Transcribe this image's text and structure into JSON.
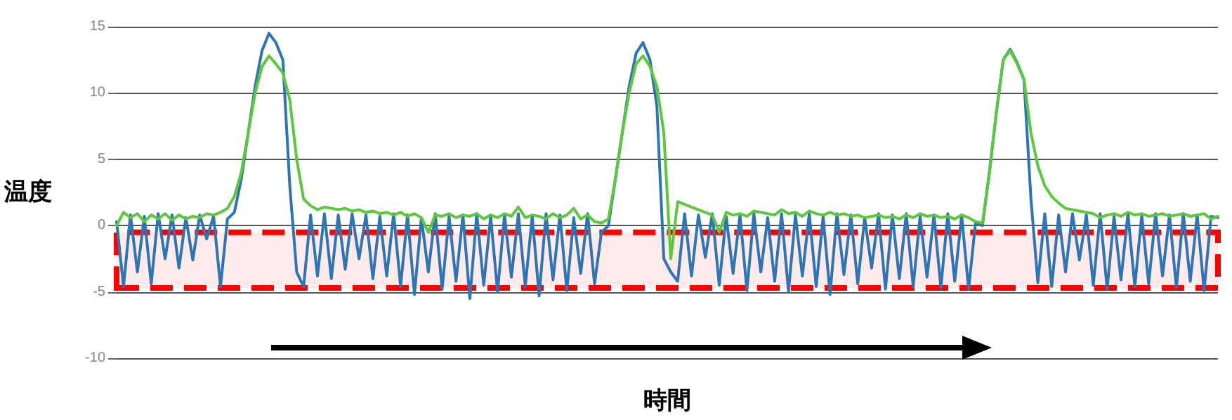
{
  "chart_data": {
    "type": "line",
    "xlabel": "時間",
    "ylabel": "温度",
    "ylim": [
      -10,
      15
    ],
    "yticks": [
      -10,
      -5,
      0,
      5,
      10,
      15
    ],
    "grid": "y",
    "tick_labels": "y",
    "line_style": "solid",
    "categories": [
      null,
      null,
      null,
      null,
      null,
      null,
      null,
      null,
      null,
      null,
      null,
      null,
      null,
      null,
      null,
      null,
      null,
      null,
      null,
      null,
      null,
      null,
      null,
      null,
      null,
      null,
      null,
      null,
      null,
      null,
      null,
      null,
      null,
      null,
      null,
      null,
      null,
      null,
      null,
      null,
      null,
      null,
      null,
      null,
      null,
      null,
      null,
      null,
      null,
      null,
      null,
      null,
      null,
      null,
      null,
      null,
      null,
      null,
      null,
      null,
      null,
      null,
      null,
      null,
      null,
      null,
      null,
      null,
      null,
      null,
      null,
      null,
      null,
      null,
      null,
      null,
      null,
      null,
      null,
      null,
      null,
      null,
      null,
      null,
      null,
      null,
      null,
      null,
      null,
      null,
      null,
      null,
      null,
      null,
      null,
      null,
      null,
      null,
      null,
      null,
      null,
      null,
      null,
      null,
      null,
      null,
      null,
      null,
      null,
      null,
      null,
      null,
      null,
      null,
      null,
      null,
      null,
      null,
      null,
      null,
      null,
      null,
      null,
      null,
      null,
      null,
      null,
      null,
      null,
      null,
      null,
      null,
      null,
      null,
      null,
      null,
      null,
      null,
      null,
      null,
      null,
      null,
      null,
      null,
      null,
      null,
      null,
      null,
      null,
      null,
      null,
      null,
      null,
      null,
      null,
      null,
      null,
      null,
      null,
      null
    ],
    "series": [
      {
        "color": "#2e75b6",
        "values": [
          0.3,
          -4.6,
          0.8,
          -3.5,
          0.7,
          -4.4,
          0.9,
          -2.5,
          0.8,
          -3.2,
          0.6,
          -2.6,
          0.8,
          -1.0,
          0.7,
          -4.6,
          0.5,
          1.0,
          3.5,
          7,
          10.5,
          13.2,
          14.5,
          13.8,
          12.5,
          3,
          -3.5,
          -4.6,
          0.8,
          -3.8,
          0.9,
          -4,
          0.8,
          -3.3,
          0.9,
          -2.5,
          0.8,
          -4,
          0.7,
          -3.8,
          0.9,
          -4.6,
          0.8,
          -5.2,
          0.6,
          -3.5,
          0.9,
          -4.8,
          0.7,
          -4.2,
          0.8,
          -5.5,
          0.9,
          -4.5,
          0.7,
          -5,
          0.8,
          -3.9,
          0.9,
          -4.6,
          0.7,
          -5.3,
          0.9,
          -4.1,
          0.8,
          -4.9,
          0.6,
          -3.6,
          0.9,
          -4.4,
          -0.5,
          0,
          3.5,
          7,
          10.5,
          13,
          13.8,
          12.5,
          9,
          -2.5,
          -3.5,
          -4.2,
          0.9,
          -3.8,
          0.8,
          -2.4,
          0.9,
          -4.5,
          0.7,
          -3.6,
          0.8,
          -4.9,
          0.9,
          -3.5,
          0.6,
          -4.2,
          0.9,
          -5,
          0.8,
          -3.8,
          0.9,
          -4.6,
          0.7,
          -5.2,
          0.9,
          -3.7,
          0.8,
          -4.4,
          0.6,
          -3.2,
          0.9,
          -4.8,
          0.8,
          -4,
          0.9,
          -4.6,
          0.7,
          -3.9,
          0.8,
          -4.7,
          0.9,
          -4.2,
          0.8,
          -4.8,
          0.2,
          0,
          4,
          8.5,
          12.5,
          13.3,
          12.3,
          11,
          2,
          -4.3,
          0.9,
          -4.6,
          0.8,
          -3.5,
          0.9,
          -2.6,
          0.8,
          -4.5,
          0.9,
          -4.8,
          0.7,
          -4.1,
          0.9,
          -4.6,
          0.8,
          -4.4,
          0.9,
          -3.8,
          0.8,
          -4.7,
          0.9,
          -4.2,
          0.8,
          -4.9,
          0.7,
          0.6
        ]
      },
      {
        "color": "#5cc83c",
        "values": [
          0,
          1,
          0.6,
          0.9,
          0.3,
          0.8,
          0.5,
          0.9,
          0.4,
          0.8,
          0.5,
          0.7,
          0.6,
          0.9,
          0.8,
          1.0,
          1.3,
          2.2,
          4,
          7,
          10,
          12,
          12.8,
          12.2,
          11.5,
          9.5,
          5,
          2,
          1.5,
          1.2,
          1.4,
          1.3,
          1.2,
          1.3,
          1.1,
          1.2,
          1.0,
          1.1,
          0.9,
          1.0,
          0.8,
          1.0,
          0.7,
          0.9,
          0.6,
          -0.5,
          0.8,
          0.7,
          0.9,
          0.6,
          0.8,
          0.7,
          0.9,
          0.5,
          0.8,
          0.6,
          0.9,
          0.7,
          1.4,
          0.6,
          0.8,
          0.7,
          0.5,
          0.9,
          0.6,
          0.8,
          1.3,
          0.5,
          0.8,
          0.3,
          0.2,
          0.5,
          3.5,
          7,
          10,
          12.2,
          12.8,
          12,
          10.5,
          7,
          -2.5,
          1.8,
          1.6,
          1.4,
          1.2,
          1.0,
          0.8,
          -0.5,
          1.0,
          0.8,
          0.9,
          0.7,
          1.1,
          1.0,
          0.9,
          0.8,
          1.2,
          0.9,
          1.0,
          0.7,
          1.1,
          0.9,
          0.8,
          1.0,
          0.8,
          0.9,
          0.7,
          0.8,
          0.6,
          0.7,
          0.8,
          0.6,
          0.7,
          0.5,
          0.8,
          0.6,
          0.9,
          0.7,
          0.8,
          0.6,
          0.7,
          0.5,
          0.8,
          0.6,
          0.3,
          0.2,
          4,
          8.5,
          12.5,
          13.2,
          12.2,
          11,
          7,
          4.5,
          3,
          2.2,
          1.7,
          1.3,
          1.2,
          1.1,
          1.0,
          0.9,
          0.6,
          0.8,
          0.9,
          0.7,
          1.0,
          0.8,
          0.9,
          0.7,
          0.8,
          0.9,
          0.7,
          0.8,
          0.9,
          0.7,
          0.8,
          0.9,
          0.5,
          0.7
        ]
      }
    ],
    "bands": [
      {
        "axis": "y",
        "from": -4.7,
        "to": -0.5,
        "color": "#ff0000"
      }
    ]
  }
}
